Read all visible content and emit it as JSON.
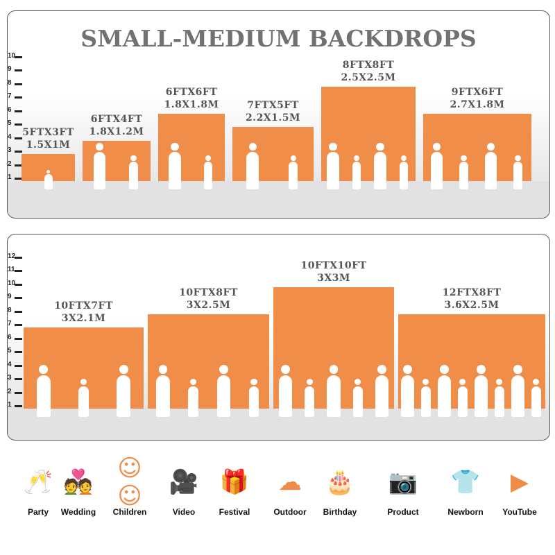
{
  "top": {
    "title": "SMALL-MEDIUM BACKDROPS",
    "ruler": [
      "1",
      "2",
      "3",
      "4",
      "5",
      "6",
      "7",
      "8",
      "9",
      "10"
    ],
    "sizes": [
      {
        "ft": "5FTX3FT",
        "m": "1.5X1M",
        "height_ft": 3,
        "people": 1
      },
      {
        "ft": "6FTX4FT",
        "m": "1.8X1.2M",
        "height_ft": 4,
        "people": 2
      },
      {
        "ft": "6FTX6FT",
        "m": "1.8X1.8M",
        "height_ft": 6,
        "people": 2
      },
      {
        "ft": "7FTX5FT",
        "m": "2.2X1.5M",
        "height_ft": 5,
        "people": 2
      },
      {
        "ft": "8FTX8FT",
        "m": "2.5X2.5M",
        "height_ft": 8,
        "people": 4
      },
      {
        "ft": "9FTX6FT",
        "m": "2.7X1.8M",
        "height_ft": 6,
        "people": 4
      }
    ]
  },
  "bottom": {
    "ruler": [
      "1",
      "2",
      "3",
      "4",
      "5",
      "6",
      "7",
      "8",
      "9",
      "10",
      "11",
      "12"
    ],
    "sizes": [
      {
        "ft": "10FTX7FT",
        "m": "3X2.1M",
        "height_ft": 7,
        "people": 3
      },
      {
        "ft": "10FTX8FT",
        "m": "3X2.5M",
        "height_ft": 8,
        "people": 4
      },
      {
        "ft": "10FTX10FT",
        "m": "3X3M",
        "height_ft": 10,
        "people": 5
      },
      {
        "ft": "12FTX8FT",
        "m": "3.6X2.5M",
        "height_ft": 8,
        "people": 8
      }
    ]
  },
  "uses": [
    {
      "label": "Party",
      "icon": "glasses-toast-icon",
      "glyph": "🥂"
    },
    {
      "label": "Wedding",
      "icon": "wedding-couple-icon",
      "glyph": "💑"
    },
    {
      "label": "Children",
      "icon": "children-faces-icon",
      "glyph": "☺☺"
    },
    {
      "label": "Video",
      "icon": "video-camera-icon",
      "glyph": "🎥"
    },
    {
      "label": "Festival",
      "icon": "gift-box-icon",
      "glyph": "🎁"
    },
    {
      "label": "Outdoor",
      "icon": "cloud-icon",
      "glyph": "☁"
    },
    {
      "label": "Birthday",
      "icon": "birthday-cake-icon",
      "glyph": "🎂"
    },
    {
      "label": "Product",
      "icon": "camera-icon",
      "glyph": "📷"
    },
    {
      "label": "Newborn",
      "icon": "baby-onesie-icon",
      "glyph": "👕"
    },
    {
      "label": "YouTube",
      "icon": "play-button-icon",
      "glyph": "▶"
    }
  ],
  "colors": {
    "bar": "#f08d48",
    "title": "#717171",
    "icon": "#ef8c47"
  }
}
